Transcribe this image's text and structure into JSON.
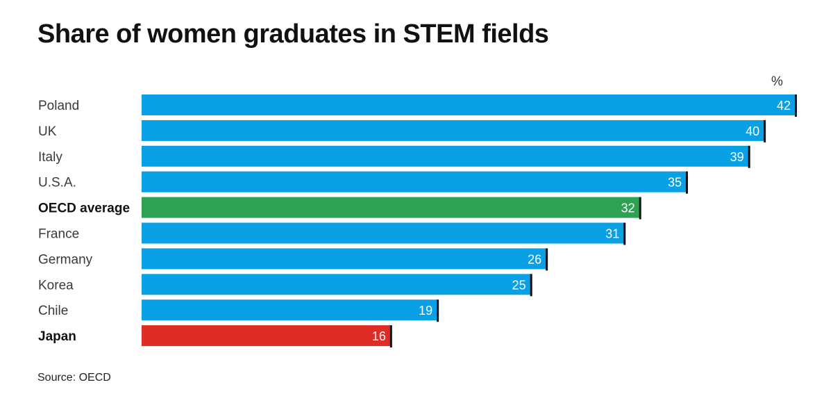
{
  "header": {
    "title": "Share of women graduates in STEM fields",
    "unit": "%"
  },
  "footer": {
    "source": "Source: OECD"
  },
  "colors": {
    "country": "#0aa0e6",
    "average": "#2ea252",
    "highlight": "#df2d26",
    "end_marker": "#111111"
  },
  "chart_data": {
    "type": "bar",
    "orientation": "horizontal",
    "title": "Share of women graduates in STEM fields",
    "unit": "%",
    "xlim": [
      0,
      42
    ],
    "grid": false,
    "categories": [
      "Poland",
      "UK",
      "Italy",
      "U.S.A.",
      "OECD average",
      "France",
      "Germany",
      "Korea",
      "Chile",
      "Japan"
    ],
    "values": [
      42,
      40,
      39,
      35,
      32,
      31,
      26,
      25,
      19,
      16
    ],
    "bar_kind": [
      "country",
      "country",
      "country",
      "country",
      "average",
      "country",
      "country",
      "country",
      "country",
      "highlight"
    ],
    "bold": [
      false,
      false,
      false,
      false,
      true,
      false,
      false,
      false,
      false,
      true
    ],
    "source": "Source: OECD"
  }
}
